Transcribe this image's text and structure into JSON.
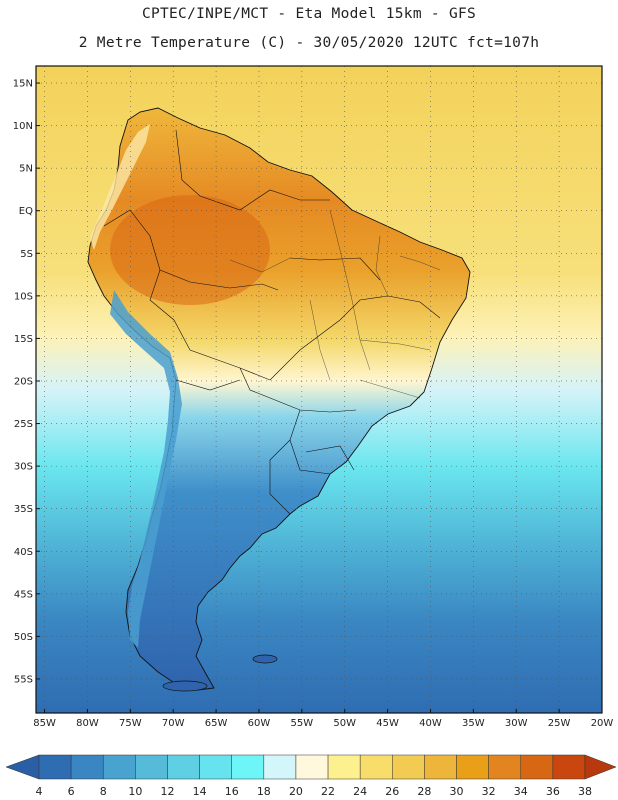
{
  "header": {
    "line1": "CPTEC/INPE/MCT -  Eta Model 15km - GFS",
    "line2": "2 Metre Temperature (C) - 30/05/2020 12UTC fct=107h"
  },
  "map": {
    "lat_ticks": [
      "15N",
      "10N",
      "5N",
      "EQ",
      "5S",
      "10S",
      "15S",
      "20S",
      "25S",
      "30S",
      "35S",
      "40S",
      "45S",
      "50S",
      "55S"
    ],
    "lon_ticks": [
      "85W",
      "80W",
      "75W",
      "70W",
      "65W",
      "60W",
      "55W",
      "50W",
      "45W",
      "40W",
      "35W",
      "30W",
      "25W",
      "20W"
    ],
    "extent_deg": {
      "lon_min": -86,
      "lon_max": -20,
      "lat_min": -59,
      "lat_max": 17
    }
  },
  "colorbar": {
    "ticks": [
      "4",
      "6",
      "8",
      "10",
      "12",
      "14",
      "16",
      "18",
      "20",
      "22",
      "24",
      "26",
      "28",
      "30",
      "32",
      "34",
      "36",
      "38"
    ],
    "colors": [
      "#2f6db2",
      "#3a86c2",
      "#48a3cf",
      "#56bad9",
      "#5fd0e4",
      "#66e3ee",
      "#6ef5f7",
      "#d2f6fa",
      "#fff8dd",
      "#fdf08f",
      "#f8dd6a",
      "#f2cc52",
      "#eeb53b",
      "#e9a018",
      "#e2841f",
      "#d86714",
      "#c9460f"
    ],
    "under_color": "#2a5fa6",
    "over_color": "#b7390d"
  }
}
